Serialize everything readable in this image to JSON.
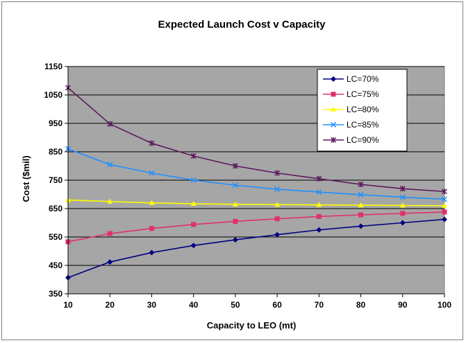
{
  "chart_data": {
    "type": "line",
    "title": "Expected Launch Cost v Capacity",
    "xlabel": "Capacity to LEO (mt)",
    "ylabel": "Cost ($mil)",
    "x": [
      10,
      20,
      30,
      40,
      50,
      60,
      70,
      80,
      90,
      100
    ],
    "xlim": [
      10,
      100
    ],
    "ylim": [
      350,
      1150
    ],
    "xticks": [
      "10",
      "20",
      "30",
      "40",
      "50",
      "60",
      "70",
      "80",
      "90",
      "100"
    ],
    "yticks": [
      "350",
      "450",
      "550",
      "650",
      "750",
      "850",
      "950",
      "1050",
      "1150"
    ],
    "grid": "horizontal",
    "plot_background": "#a6a6a6",
    "legend_position": "top-right",
    "series": [
      {
        "name": "LC=70%",
        "color": "#000080",
        "marker": "diamond",
        "values": [
          407,
          462,
          495,
          520,
          540,
          558,
          575,
          588,
          600,
          612
        ]
      },
      {
        "name": "LC=75%",
        "color": "#e0306a",
        "marker": "square",
        "values": [
          533,
          562,
          580,
          594,
          605,
          614,
          622,
          628,
          633,
          638
        ]
      },
      {
        "name": "LC=80%",
        "color": "#ffff00",
        "marker": "triangle",
        "values": [
          680,
          675,
          670,
          667,
          665,
          664,
          663,
          662,
          661,
          660
        ]
      },
      {
        "name": "LC=85%",
        "color": "#1e90ff",
        "marker": "x",
        "values": [
          860,
          805,
          775,
          750,
          732,
          718,
          708,
          699,
          690,
          683
        ]
      },
      {
        "name": "LC=90%",
        "color": "#5c1a5c",
        "marker": "star",
        "values": [
          1075,
          948,
          880,
          835,
          800,
          775,
          755,
          735,
          720,
          710
        ]
      }
    ]
  }
}
